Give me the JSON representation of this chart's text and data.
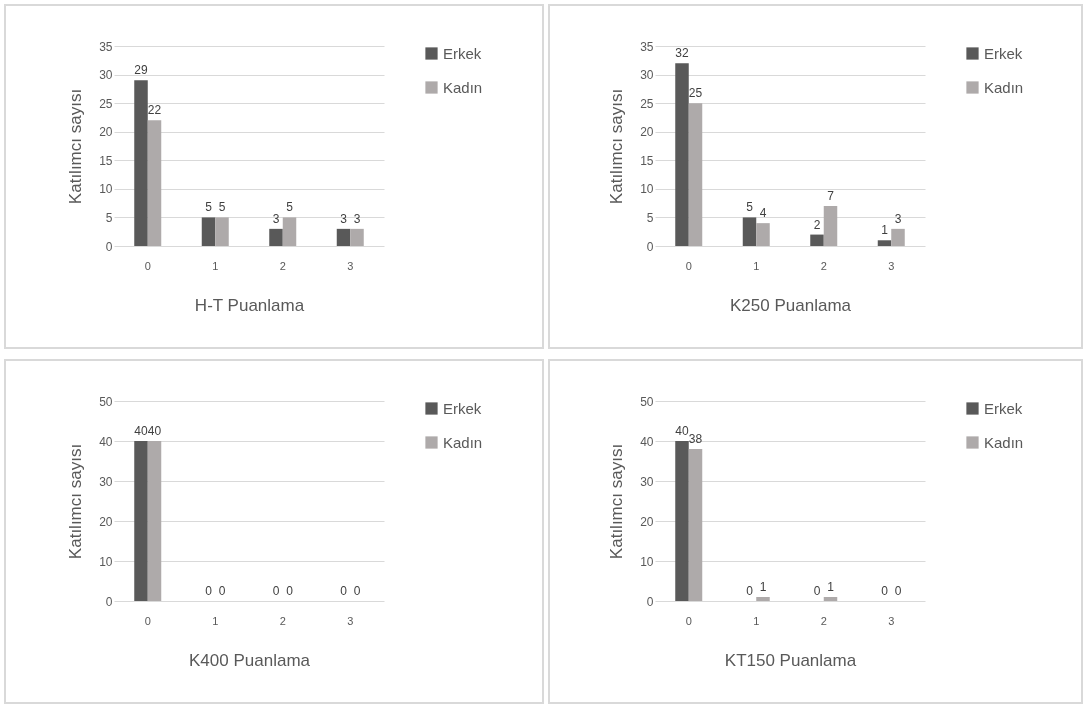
{
  "chart_data": [
    {
      "type": "bar",
      "xlabel": "H-T Puanlama",
      "ylabel": "Katılımcı sayısı",
      "categories": [
        "0",
        "1",
        "2",
        "3"
      ],
      "series": [
        {
          "name": "Erkek",
          "color": "#595959",
          "values": [
            29,
            5,
            3,
            3
          ]
        },
        {
          "name": "Kadın",
          "color": "#aeaaaa",
          "values": [
            22,
            5,
            5,
            3
          ]
        }
      ],
      "ylim": [
        0,
        35
      ],
      "yticks": [
        0,
        5,
        10,
        15,
        20,
        25,
        30,
        35
      ],
      "grid": "y",
      "legend": "right",
      "data_labels": true
    },
    {
      "type": "bar",
      "xlabel": "K250 Puanlama",
      "ylabel": "Katılımcı sayısı",
      "categories": [
        "0",
        "1",
        "2",
        "3"
      ],
      "series": [
        {
          "name": "Erkek",
          "color": "#595959",
          "values": [
            32,
            5,
            2,
            1
          ]
        },
        {
          "name": "Kadın",
          "color": "#aeaaaa",
          "values": [
            25,
            4,
            7,
            3
          ]
        }
      ],
      "ylim": [
        0,
        35
      ],
      "yticks": [
        0,
        5,
        10,
        15,
        20,
        25,
        30,
        35
      ],
      "grid": "y",
      "legend": "right",
      "data_labels": true
    },
    {
      "type": "bar",
      "xlabel": "K400 Puanlama",
      "ylabel": "Katılımcı sayısı",
      "categories": [
        "0",
        "1",
        "2",
        "3"
      ],
      "series": [
        {
          "name": "Erkek",
          "color": "#595959",
          "values": [
            40,
            0,
            0,
            0
          ]
        },
        {
          "name": "Kadın",
          "color": "#aeaaaa",
          "values": [
            40,
            0,
            0,
            0
          ]
        }
      ],
      "ylim": [
        0,
        50
      ],
      "yticks": [
        0,
        10,
        20,
        30,
        40,
        50
      ],
      "grid": "y",
      "legend": "right",
      "data_labels": true
    },
    {
      "type": "bar",
      "xlabel": "KT150 Puanlama",
      "ylabel": "Katılımcı sayısı",
      "categories": [
        "0",
        "1",
        "2",
        "3"
      ],
      "series": [
        {
          "name": "Erkek",
          "color": "#595959",
          "values": [
            40,
            0,
            0,
            0
          ]
        },
        {
          "name": "Kadın",
          "color": "#aeaaaa",
          "values": [
            38,
            1,
            1,
            0
          ]
        }
      ],
      "ylim": [
        0,
        50
      ],
      "yticks": [
        0,
        10,
        20,
        30,
        40,
        50
      ],
      "grid": "y",
      "legend": "right",
      "data_labels": true
    }
  ]
}
